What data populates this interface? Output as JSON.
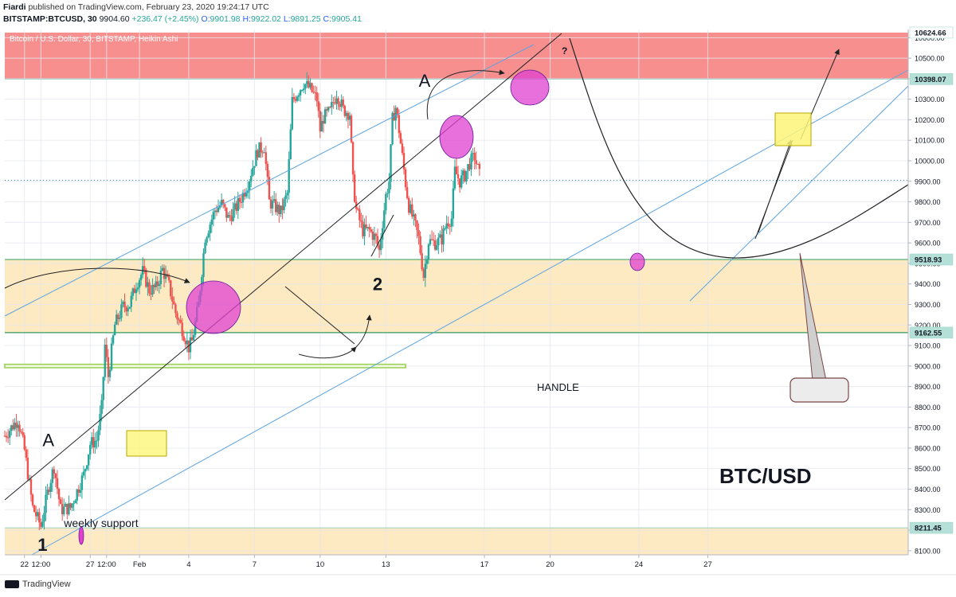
{
  "header": {
    "author": "Fiardi",
    "published_text": "published on TradingView.com, February 23, 2020 19:24:17 UTC",
    "symbol_line": "BITSTAMP:BTCUSD, 30",
    "last": "9904.60",
    "change": "+236.47 (+2.45%)",
    "o_label": "O:",
    "o": "9901.98",
    "h_label": "H:",
    "h": "9922.02",
    "l_label": "L:",
    "l": "9891.25",
    "c_label": "C:",
    "c": "9905.41"
  },
  "footer": {
    "brand": "TradingView"
  },
  "colors": {
    "up": "#26a69a",
    "down": "#ef5350",
    "resistance": "#f77b7b",
    "zone": "#fde9c2",
    "highlight": "#e040d0",
    "trend": "#5ba3e0",
    "lime": "#a8d86a"
  },
  "chart_data": {
    "type": "line",
    "title": "Bitcoin / U.S. Dollar, 30, BITSTAMP, Heikin Ashi",
    "watermark": "BTC/USD",
    "ylim": [
      8080,
      10640
    ],
    "y_ticks": [
      8100,
      8200,
      8300,
      8400,
      8500,
      8600,
      8700,
      8800,
      8900,
      9000,
      9100,
      9200,
      9300,
      9400,
      9500,
      9600,
      9700,
      9800,
      9900,
      10000,
      10100,
      10200,
      10300,
      10400,
      10500,
      10600
    ],
    "y_tick_labels": [
      "8100.00",
      "8200.00",
      "8300.00",
      "8400.00",
      "8500.00",
      "8600.00",
      "8700.00",
      "8800.00",
      "8900.00",
      "9000.00",
      "9100.00",
      "9200.00",
      "9300.00",
      "9400.00",
      "9500.00",
      "9600.00",
      "9700.00",
      "9800.00",
      "9900.00",
      "10000.00",
      "10100.00",
      "10200.00",
      "10300.00",
      "10400.00",
      "10500.00",
      "10600.00"
    ],
    "x_range_days": [
      21.4,
      48.9
    ],
    "x_ticks": [
      {
        "day": 22,
        "label": "22"
      },
      {
        "day": 22.5,
        "label": "12:00"
      },
      {
        "day": 24,
        "label": "27"
      },
      {
        "day": 24.5,
        "label": "12:00"
      },
      {
        "day": 25.5,
        "label": "Feb"
      },
      {
        "day": 27,
        "label": "4"
      },
      {
        "day": 29,
        "label": "7"
      },
      {
        "day": 31,
        "label": "10"
      },
      {
        "day": 33,
        "label": "13"
      },
      {
        "day": 36,
        "label": "17"
      },
      {
        "day": 38,
        "label": "20"
      },
      {
        "day": 40.7,
        "label": "24"
      },
      {
        "day": 42.8,
        "label": "27"
      }
    ],
    "price_labels": [
      {
        "value": 10624.66,
        "label": "10624.66"
      },
      {
        "value": 10398.07,
        "label": "10398.07"
      },
      {
        "value": 9518.93,
        "label": "9518.93"
      },
      {
        "value": 9162.55,
        "label": "9162.55"
      },
      {
        "value": 8211.45,
        "label": "8211.45"
      }
    ],
    "price_path": [
      [
        21.4,
        8660
      ],
      [
        21.8,
        8740
      ],
      [
        22.0,
        8590
      ],
      [
        22.25,
        8310
      ],
      [
        22.5,
        8220
      ],
      [
        22.75,
        8420
      ],
      [
        22.9,
        8510
      ],
      [
        23.1,
        8300
      ],
      [
        23.4,
        8310
      ],
      [
        23.6,
        8390
      ],
      [
        23.8,
        8470
      ],
      [
        24.0,
        8620
      ],
      [
        24.2,
        8640
      ],
      [
        24.35,
        8800
      ],
      [
        24.45,
        9100
      ],
      [
        24.55,
        8950
      ],
      [
        24.75,
        9200
      ],
      [
        25.0,
        9290
      ],
      [
        25.2,
        9300
      ],
      [
        25.4,
        9400
      ],
      [
        25.6,
        9460
      ],
      [
        25.8,
        9370
      ],
      [
        26.0,
        9380
      ],
      [
        26.2,
        9470
      ],
      [
        26.4,
        9390
      ],
      [
        26.6,
        9260
      ],
      [
        26.8,
        9180
      ],
      [
        27.0,
        9090
      ],
      [
        27.1,
        9120
      ],
      [
        27.3,
        9300
      ],
      [
        27.5,
        9630
      ],
      [
        27.8,
        9760
      ],
      [
        28.0,
        9790
      ],
      [
        28.2,
        9720
      ],
      [
        28.4,
        9760
      ],
      [
        28.6,
        9820
      ],
      [
        28.8,
        9890
      ],
      [
        29.0,
        10000
      ],
      [
        29.1,
        10050
      ],
      [
        29.3,
        10070
      ],
      [
        29.45,
        9800
      ],
      [
        29.6,
        9780
      ],
      [
        29.8,
        9750
      ],
      [
        30.0,
        9840
      ],
      [
        30.15,
        10290
      ],
      [
        30.3,
        10330
      ],
      [
        30.5,
        10380
      ],
      [
        30.7,
        10350
      ],
      [
        30.9,
        10300
      ],
      [
        31.0,
        10150
      ],
      [
        31.1,
        10210
      ],
      [
        31.3,
        10240
      ],
      [
        31.5,
        10330
      ],
      [
        31.7,
        10250
      ],
      [
        31.9,
        10230
      ],
      [
        32.0,
        9900
      ],
      [
        32.1,
        9760
      ],
      [
        32.3,
        9660
      ],
      [
        32.5,
        9660
      ],
      [
        32.7,
        9620
      ],
      [
        32.8,
        9560
      ],
      [
        32.9,
        9700
      ],
      [
        33.0,
        9830
      ],
      [
        33.1,
        9900
      ],
      [
        33.2,
        10200
      ],
      [
        33.3,
        10260
      ],
      [
        33.4,
        10150
      ],
      [
        33.6,
        9890
      ],
      [
        33.7,
        9780
      ],
      [
        33.9,
        9680
      ],
      [
        34.0,
        9620
      ],
      [
        34.15,
        9440
      ],
      [
        34.3,
        9610
      ],
      [
        34.5,
        9600
      ],
      [
        34.7,
        9620
      ],
      [
        34.85,
        9700
      ],
      [
        35.0,
        9720
      ],
      [
        35.1,
        9950
      ],
      [
        35.25,
        9900
      ],
      [
        35.4,
        9930
      ],
      [
        35.55,
        9990
      ],
      [
        35.7,
        10020
      ],
      [
        35.85,
        9930
      ]
    ],
    "annotations": [
      {
        "text": "A",
        "day": 22.55,
        "price": 8610
      },
      {
        "text": "A",
        "day": 34.0,
        "price": 10360
      },
      {
        "text": "1",
        "day": 22.4,
        "price": 8100
      },
      {
        "text": "2",
        "day": 32.6,
        "price": 9370
      },
      {
        "text": "?",
        "day": 38.35,
        "price": 10520
      },
      {
        "text": "weekly support",
        "day": 23.2,
        "price": 8215
      },
      {
        "text": "HANDLE",
        "day": 37.6,
        "price": 8880
      }
    ]
  }
}
